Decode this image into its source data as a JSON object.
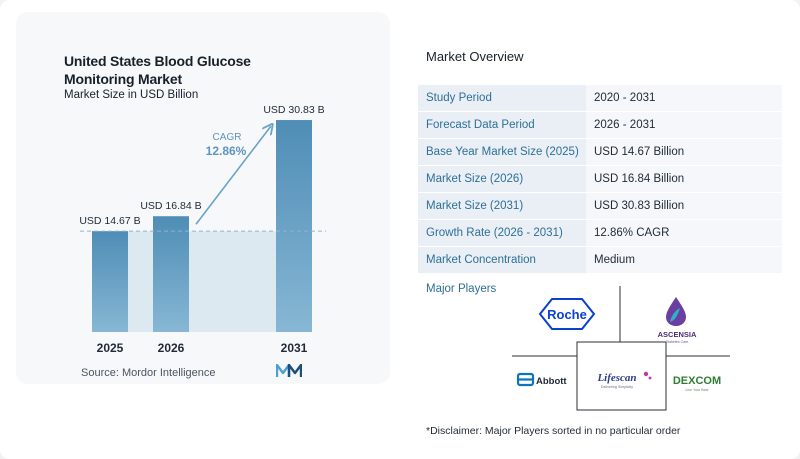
{
  "chart_data": {
    "type": "bar",
    "title_lines": [
      "United States Blood Glucose",
      "Monitoring Market"
    ],
    "subtitle": "Market Size in USD Billion",
    "categories": [
      "2025",
      "2026",
      "2031"
    ],
    "values": [
      14.67,
      16.84,
      30.83
    ],
    "value_labels": [
      "USD 14.67 B",
      "USD 16.84 B",
      "USD 30.83 B"
    ],
    "ylim": [
      0,
      32
    ],
    "cagr_label": "CAGR",
    "cagr_value": "12.86%",
    "grid": false,
    "colors": {
      "bar_top": "#4f8db6",
      "bar_bottom": "#87b7d4",
      "band": "#dde9f1",
      "arrow": "#6aa3c8",
      "dash": "#8fb4cc",
      "cagr": "#5f95bc"
    }
  },
  "source": "Source:  Mordor Intelligence",
  "logo_icon": "mordor-intelligence-logo-icon",
  "overview": {
    "title": "Market Overview",
    "rows": [
      {
        "label": "Study Period",
        "value": "2020 - 2031"
      },
      {
        "label": "Forecast Data Period",
        "value": "2026 - 2031"
      },
      {
        "label": "Base Year Market Size (2025)",
        "value": "USD 14.67 Billion"
      },
      {
        "label": "Market Size (2026)",
        "value": "USD 16.84 Billion"
      },
      {
        "label": "Market Size (2031)",
        "value": "USD 30.83 Billion"
      },
      {
        "label": "Growth Rate (2026 - 2031)",
        "value": "12.86% CAGR"
      },
      {
        "label": "Market Concentration",
        "value": "Medium"
      }
    ]
  },
  "players": {
    "title": "Major Players",
    "logos": {
      "roche": "Roche",
      "ascensia": "ASCENSIA",
      "ascensia_sub": "Diabetes Care",
      "abbott": "Abbott",
      "lifescan": "Lifescan",
      "lifescan_sub": "Delivering Simplicity",
      "dexcom": "DEXCOM",
      "dexcom_sub": "Live Your Best"
    }
  },
  "disclaimer": "*Disclaimer: Major Players sorted in no particular order"
}
